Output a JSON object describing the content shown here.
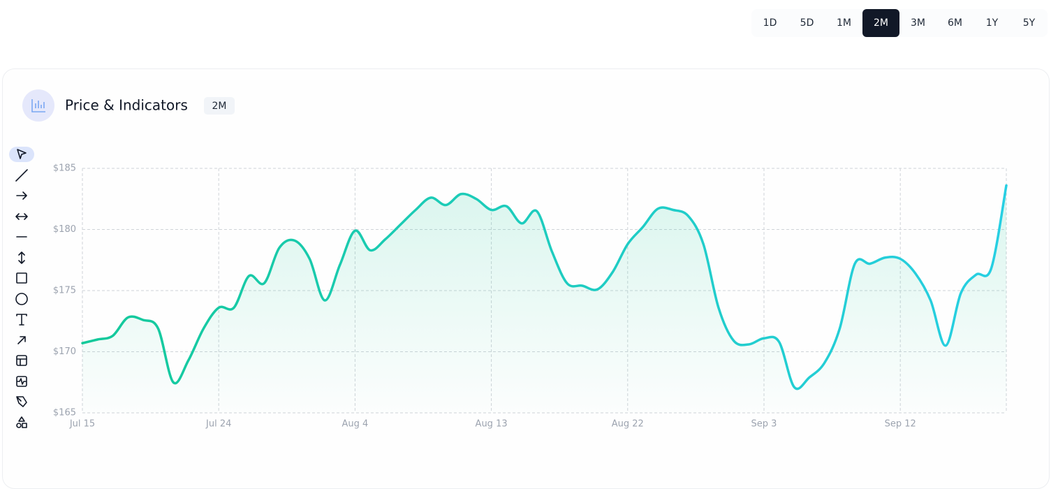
{
  "periods": {
    "options": [
      "1D",
      "5D",
      "1M",
      "2M",
      "3M",
      "6M",
      "1Y",
      "5Y"
    ],
    "active": 3
  },
  "header": {
    "title": "Price & Indicators",
    "badge": "2M"
  },
  "chart_data": {
    "type": "line",
    "categories": [
      "Jul 15",
      null,
      null,
      null,
      null,
      null,
      null,
      null,
      null,
      "Jul 24",
      null,
      null,
      null,
      null,
      null,
      null,
      null,
      null,
      "Aug 4",
      null,
      null,
      null,
      null,
      null,
      null,
      null,
      null,
      "Aug 13",
      null,
      null,
      null,
      null,
      null,
      null,
      null,
      null,
      "Aug 22",
      null,
      null,
      null,
      null,
      null,
      null,
      null,
      null,
      "Sep 3",
      null,
      null,
      null,
      null,
      null,
      null,
      null,
      null,
      "Sep 12",
      null,
      null,
      null,
      null,
      null,
      null,
      null
    ],
    "values": [
      170.7,
      171.0,
      171.3,
      172.8,
      172.6,
      171.9,
      167.5,
      169.3,
      171.9,
      173.6,
      173.6,
      176.2,
      175.6,
      178.5,
      179.1,
      177.6,
      174.2,
      177.1,
      179.9,
      178.3,
      179.2,
      180.4,
      181.6,
      182.6,
      182.0,
      182.9,
      182.5,
      181.6,
      181.9,
      180.5,
      181.5,
      178.2,
      175.6,
      175.4,
      175.1,
      176.5,
      178.8,
      180.2,
      181.7,
      181.6,
      181.1,
      178.8,
      173.6,
      170.9,
      170.6,
      171.1,
      170.8,
      167.1,
      167.9,
      169.1,
      171.9,
      177.2,
      177.2,
      177.7,
      177.6,
      176.4,
      174.2,
      170.5,
      174.8,
      176.3,
      176.8,
      183.6
    ],
    "color": "#14c99a",
    "color_end": "#27cfe3",
    "ylim": [
      165,
      185
    ],
    "yticks": [
      {
        "value": 165,
        "label": "$165"
      },
      {
        "value": 170,
        "label": "$170"
      },
      {
        "value": 175,
        "label": "$175"
      },
      {
        "value": 180,
        "label": "$180"
      },
      {
        "value": 185,
        "label": "$185"
      }
    ],
    "grid": true
  }
}
